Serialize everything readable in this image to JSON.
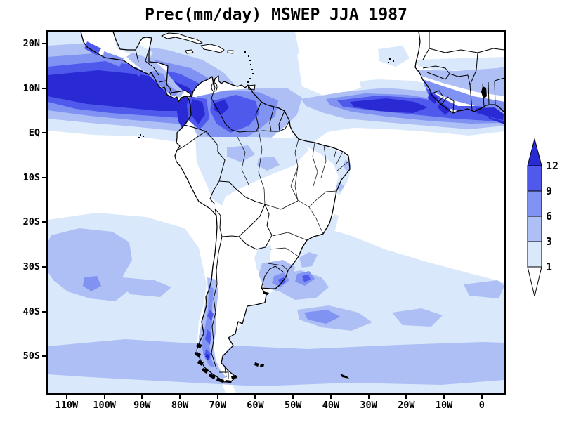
{
  "title": "Prec(mm/day) MSWEP JJA 1987",
  "axes": {
    "x_tick_labels": [
      "110W",
      "100W",
      "90W",
      "80W",
      "70W",
      "60W",
      "50W",
      "40W",
      "30W",
      "20W",
      "10W",
      "0"
    ],
    "x_tick_lons": [
      -110,
      -100,
      -90,
      -80,
      -70,
      -60,
      -50,
      -40,
      -30,
      -20,
      -10,
      0
    ],
    "y_tick_labels": [
      "20N",
      "10N",
      "EQ",
      "10S",
      "20S",
      "30S",
      "40S",
      "50S"
    ],
    "y_tick_lats": [
      20,
      10,
      0,
      -10,
      -20,
      -30,
      -40,
      -50
    ],
    "lon_range": [
      -115,
      6
    ],
    "lat_range": [
      -58.3,
      22.7
    ]
  },
  "colorbar": {
    "labels_top_to_bottom": [
      "12",
      "9",
      "6",
      "3",
      "1"
    ],
    "orientation": "vertical",
    "extend": "both"
  },
  "palette": {
    "c0": "#ffffff",
    "c1": "#d9e9fb",
    "c2": "#adbff5",
    "c3": "#8092f2",
    "c4": "#4f59ec",
    "c5": "#2a2ad5",
    "land": "#ffffff",
    "frame": "#000000"
  },
  "chart_data": {
    "type": "heatmap",
    "subtype": "filled-contour-precipitation-map",
    "title": "Prec(mm/day) MSWEP JJA 1987",
    "variable": "Prec",
    "units": "mm/day",
    "dataset": "MSWEP",
    "season": "JJA",
    "year": "1987",
    "region": "South America and adjacent oceans",
    "lon_range_deg_east": [
      -115,
      6
    ],
    "lat_range_deg_north": [
      -58.3,
      22.7
    ],
    "x_tick_labels": [
      "110W",
      "100W",
      "90W",
      "80W",
      "70W",
      "60W",
      "50W",
      "40W",
      "30W",
      "20W",
      "10W",
      "0"
    ],
    "y_tick_labels": [
      "20N",
      "10N",
      "EQ",
      "10S",
      "20S",
      "30S",
      "40S",
      "50S"
    ],
    "grid": false,
    "colorbar": {
      "levels": [
        1,
        3,
        6,
        9,
        12
      ],
      "colors_low_to_high": [
        "#ffffff",
        "#d9e9fb",
        "#adbff5",
        "#8092f2",
        "#4f59ec",
        "#2a2ad5"
      ],
      "orientation": "vertical",
      "position": "right",
      "extend": "both"
    },
    "notable_features": [
      {
        "region": "East Pacific ITCZ band, ~3N-13N, 115W to Colombian coast",
        "value_mm_day": ">12"
      },
      {
        "region": "Atlantic ITCZ band, ~4N-10N, 45W to West Africa",
        "value_mm_day": "9 to >12"
      },
      {
        "region": "Panama Bight / Pacific coast of Colombia (Choco)",
        "value_mm_day": ">12"
      },
      {
        "region": "Western Venezuela, Colombian llanos, Guianas",
        "value_mm_day": "6-12"
      },
      {
        "region": "West African Guinea coast (Sierra Leone to Ghana)",
        "value_mm_day": "9 to >12"
      },
      {
        "region": "Northwest Amazon basin",
        "value_mm_day": "1-6"
      },
      {
        "region": "Central/eastern Brazil, Argentina interior, subtropical oceans",
        "value_mm_day": "<1"
      },
      {
        "region": "Northeast Brazil coastal strip",
        "value_mm_day": "1-3"
      },
      {
        "region": "Southern Chile coast 35S-55S",
        "value_mm_day": "3-12"
      },
      {
        "region": "Uruguay / southern Brazil and SW Atlantic",
        "value_mm_day": "3-9"
      },
      {
        "region": "Southern Ocean storm track south of 40S",
        "value_mm_day": "1-6"
      },
      {
        "region": "South Pacific convergence zone fringe ~25S-35S, 90W-115W",
        "value_mm_day": "1-6"
      }
    ]
  }
}
